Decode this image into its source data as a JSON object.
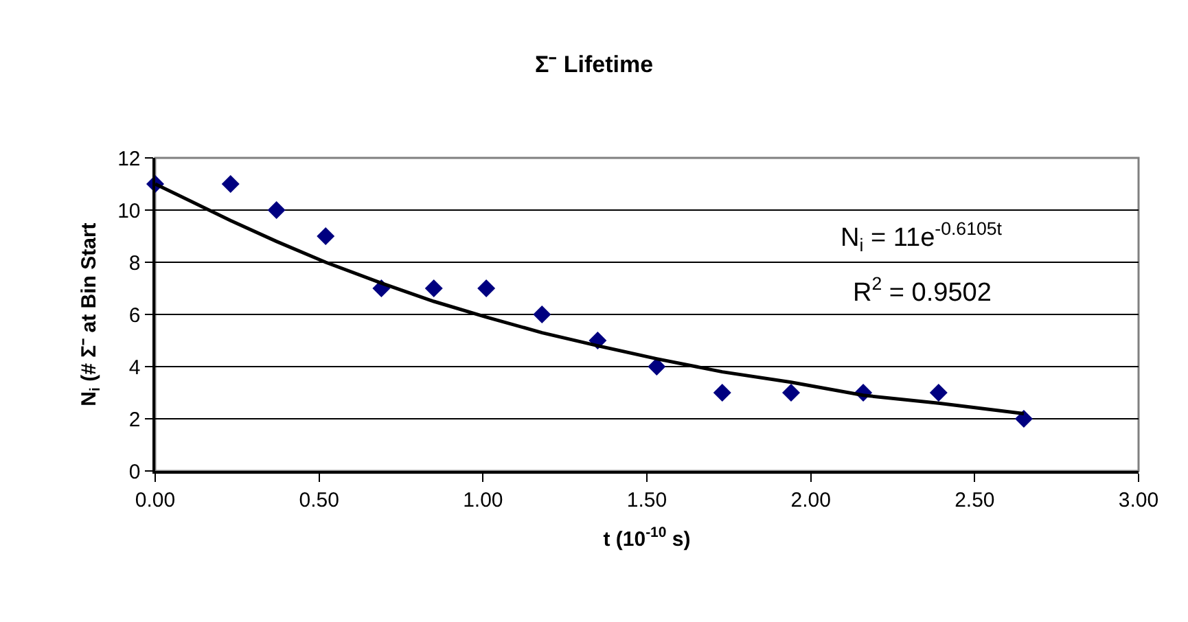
{
  "chart_data": {
    "type": "scatter",
    "title": "Σ⁻ Lifetime",
    "xlabel": "t (10$^{-10}$ s)",
    "ylabel": "N$_{i}$ (# Σ⁻ at Bin Start",
    "x": [
      0.0,
      0.23,
      0.37,
      0.52,
      0.69,
      0.85,
      1.01,
      1.18,
      1.35,
      1.53,
      1.73,
      1.94,
      2.16,
      2.39,
      2.65
    ],
    "series": [
      {
        "color": "#000080",
        "marker": "diamond",
        "values": [
          11,
          11,
          10,
          9,
          7,
          7,
          7,
          6,
          5,
          4,
          3,
          3,
          3,
          3,
          2
        ]
      },
      {
        "type": "line",
        "color": "#000000",
        "marker": "none",
        "line_style": "solid",
        "x": [
          0.0,
          0.23,
          0.37,
          0.52,
          0.69,
          0.85,
          1.01,
          1.18,
          1.35,
          1.53,
          1.73,
          1.94,
          2.16,
          2.39,
          2.65
        ],
        "values": [
          11,
          9.6,
          8.8,
          8.0,
          7.2,
          6.5,
          5.9,
          5.3,
          4.8,
          4.3,
          3.8,
          3.4,
          2.9,
          2.6,
          2.2
        ]
      }
    ],
    "annotations": [
      "N$_{i}$ = 11e$^{-0.6105t}$",
      "R$^{2}$ = 0.9502"
    ],
    "xlim": [
      0,
      3
    ],
    "xticks": [
      {
        "value": 0,
        "label": "0.00"
      },
      {
        "value": 0.5,
        "label": "0.50"
      },
      {
        "value": 1,
        "label": "1.00"
      },
      {
        "value": 1.5,
        "label": "1.50"
      },
      {
        "value": 2,
        "label": "2.00"
      },
      {
        "value": 2.5,
        "label": "2.50"
      },
      {
        "value": 3,
        "label": "3.00"
      }
    ],
    "ylim": [
      0,
      12
    ],
    "yticks": [
      0,
      2,
      4,
      6,
      8,
      10,
      12
    ],
    "grid": "y"
  }
}
